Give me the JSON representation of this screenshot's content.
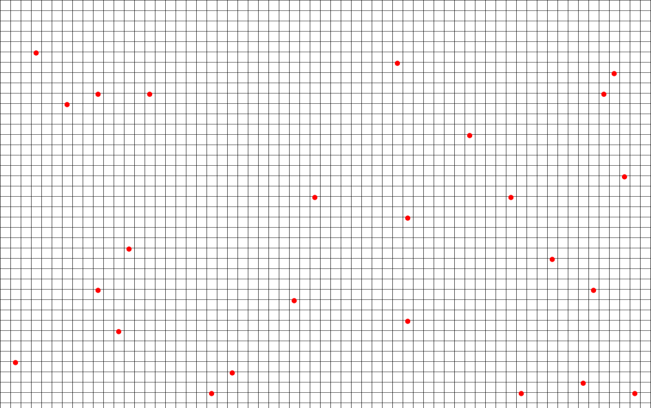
{
  "grid": {
    "columns": 63,
    "rows": 40,
    "line_color": "#000000",
    "background": "#ffffff"
  },
  "dot_color": "#ff0000",
  "dots": [
    {
      "col": 3,
      "row": 5
    },
    {
      "col": 6,
      "row": 10
    },
    {
      "col": 9,
      "row": 9
    },
    {
      "col": 14,
      "row": 9
    },
    {
      "col": 38,
      "row": 6
    },
    {
      "col": 45,
      "row": 13
    },
    {
      "col": 58,
      "row": 9
    },
    {
      "col": 59,
      "row": 7
    },
    {
      "col": 60,
      "row": 17
    },
    {
      "col": 30,
      "row": 19
    },
    {
      "col": 39,
      "row": 21
    },
    {
      "col": 49,
      "row": 19
    },
    {
      "col": 12,
      "row": 24
    },
    {
      "col": 53,
      "row": 25
    },
    {
      "col": 9,
      "row": 28
    },
    {
      "col": 28,
      "row": 29
    },
    {
      "col": 57,
      "row": 28
    },
    {
      "col": 39,
      "row": 31
    },
    {
      "col": 11,
      "row": 32
    },
    {
      "col": 1,
      "row": 35
    },
    {
      "col": 22,
      "row": 36
    },
    {
      "col": 20,
      "row": 38
    },
    {
      "col": 50,
      "row": 38
    },
    {
      "col": 56,
      "row": 37
    },
    {
      "col": 61,
      "row": 38
    }
  ]
}
